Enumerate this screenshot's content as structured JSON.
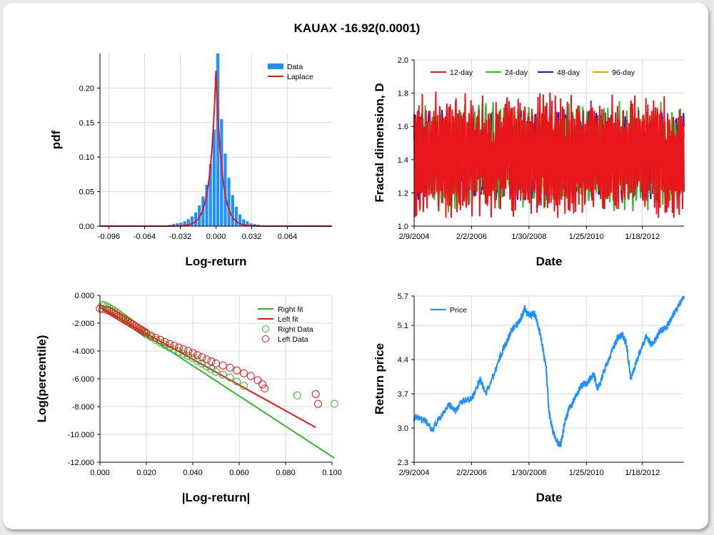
{
  "title": "KAUAX -16.92(0.0001)",
  "chart_data": [
    {
      "type": "bar",
      "xlabel": "Log-return",
      "ylabel": "pdf",
      "xlim": [
        -0.104,
        0.104
      ],
      "ylim": [
        0,
        0.25
      ],
      "x_ticks": [
        "-0.096",
        "-0.064",
        "-0.032",
        "0.000",
        "0.032",
        "0.064"
      ],
      "x_tick_values": [
        -0.096,
        -0.064,
        -0.032,
        0.0,
        0.032,
        0.064
      ],
      "y_ticks": [
        "0.00",
        "0.05",
        "0.10",
        "0.15",
        "0.20"
      ],
      "y_tick_values": [
        0,
        0.05,
        0.1,
        0.15,
        0.2
      ],
      "legend": [
        "Data",
        "Laplace"
      ],
      "legend_position": "top-right",
      "grid": true,
      "colors": {
        "data": "#1e90ff",
        "laplace": "#e8161b"
      },
      "bin_width": 0.0033,
      "bins_x": [
        -0.0479,
        -0.0446,
        -0.0413,
        -0.038,
        -0.0347,
        -0.0314,
        -0.0281,
        -0.0248,
        -0.0215,
        -0.0182,
        -0.0149,
        -0.0116,
        -0.0083,
        -0.005,
        -0.0017,
        0.0017,
        0.005,
        0.0083,
        0.0116,
        0.0149,
        0.0182,
        0.0215,
        0.0248,
        0.0281,
        0.0314,
        0.0347,
        0.038,
        0.0413
      ],
      "bins_y": [
        0.001,
        0.001,
        0.002,
        0.003,
        0.004,
        0.005,
        0.007,
        0.01,
        0.014,
        0.02,
        0.03,
        0.043,
        0.06,
        0.09,
        0.14,
        0.25,
        0.155,
        0.105,
        0.07,
        0.045,
        0.028,
        0.017,
        0.01,
        0.007,
        0.004,
        0.003,
        0.002,
        0.001
      ],
      "laplace": {
        "peak": 0.225,
        "scale": 0.0052
      }
    },
    {
      "type": "line",
      "xlabel": "Date",
      "ylabel": "Fractal dimension, D",
      "ylim": [
        1.0,
        2.0
      ],
      "x_ticks": [
        "2/9/2004",
        "2/2/2006",
        "1/30/2008",
        "1/25/2010",
        "1/18/2012"
      ],
      "y_ticks": [
        "1.0",
        "1.2",
        "1.4",
        "1.6",
        "1.8",
        "2.0"
      ],
      "y_tick_values": [
        1.0,
        1.2,
        1.4,
        1.6,
        1.8,
        2.0
      ],
      "legend_position": "top",
      "grid": true,
      "x_range_years": [
        2004.1,
        2013.5
      ],
      "tick_years": [
        2004.1,
        2006.1,
        2008.1,
        2010.1,
        2012.05
      ],
      "series": [
        {
          "name": "12-day",
          "color": "#e8161b",
          "period": 12,
          "amplitude": 0.3
        },
        {
          "name": "24-day",
          "color": "#2db82d",
          "period": 24,
          "amplitude": 0.26
        },
        {
          "name": "48-day",
          "color": "#1a1acc",
          "period": 48,
          "amplitude": 0.22
        },
        {
          "name": "96-day",
          "color": "#ff9c00",
          "period": 96,
          "amplitude": 0.16
        }
      ]
    },
    {
      "type": "scatter",
      "xlabel": "|Log-return|",
      "ylabel": "Log(percentile)",
      "xlim": [
        0.0,
        0.1
      ],
      "ylim": [
        -12,
        0
      ],
      "x_ticks": [
        "0.000",
        "0.020",
        "0.040",
        "0.060",
        "0.080",
        "0.100"
      ],
      "x_tick_values": [
        0,
        0.02,
        0.04,
        0.06,
        0.08,
        0.1
      ],
      "y_ticks": [
        "0.000",
        "-2.000",
        "-4.000",
        "-6.000",
        "-8.000",
        "-10.000",
        "-12.000"
      ],
      "y_tick_values": [
        0,
        -2,
        -4,
        -6,
        -8,
        -10,
        -12
      ],
      "legend": [
        "Right fit",
        "Left fit",
        "Right Data",
        "Left Data"
      ],
      "legend_position": "top-right",
      "grid": true,
      "colors": {
        "right": "#2db82d",
        "left": "#e8161b"
      },
      "right_fit": [
        [
          0.0,
          -0.7
        ],
        [
          0.101,
          -11.7
        ]
      ],
      "left_fit": [
        [
          0.0,
          -0.9
        ],
        [
          0.093,
          -9.5
        ]
      ],
      "right_data": [
        [
          0.001,
          -0.69
        ],
        [
          0.002,
          -0.72
        ],
        [
          0.003,
          -0.8
        ],
        [
          0.004,
          -0.9
        ],
        [
          0.005,
          -1.0
        ],
        [
          0.006,
          -1.1
        ],
        [
          0.007,
          -1.2
        ],
        [
          0.008,
          -1.32
        ],
        [
          0.009,
          -1.45
        ],
        [
          0.01,
          -1.58
        ],
        [
          0.011,
          -1.7
        ],
        [
          0.012,
          -1.82
        ],
        [
          0.013,
          -1.95
        ],
        [
          0.014,
          -2.07
        ],
        [
          0.015,
          -2.2
        ],
        [
          0.016,
          -2.32
        ],
        [
          0.017,
          -2.44
        ],
        [
          0.018,
          -2.56
        ],
        [
          0.019,
          -2.68
        ],
        [
          0.02,
          -2.8
        ],
        [
          0.022,
          -3.0
        ],
        [
          0.024,
          -3.2
        ],
        [
          0.026,
          -3.4
        ],
        [
          0.028,
          -3.58
        ],
        [
          0.03,
          -3.75
        ],
        [
          0.032,
          -3.9
        ],
        [
          0.034,
          -4.05
        ],
        [
          0.036,
          -4.2
        ],
        [
          0.038,
          -4.35
        ],
        [
          0.04,
          -4.5
        ],
        [
          0.042,
          -4.7
        ],
        [
          0.044,
          -4.9
        ],
        [
          0.046,
          -5.1
        ],
        [
          0.048,
          -5.3
        ],
        [
          0.05,
          -5.5
        ],
        [
          0.053,
          -5.7
        ],
        [
          0.056,
          -5.9
        ],
        [
          0.059,
          -6.2
        ],
        [
          0.062,
          -6.5
        ],
        [
          0.085,
          -7.2
        ],
        [
          0.101,
          -7.8
        ]
      ],
      "left_data": [
        [
          0.0,
          -0.95
        ],
        [
          0.001,
          -0.98
        ],
        [
          0.003,
          -1.05
        ],
        [
          0.004,
          -1.1
        ],
        [
          0.005,
          -1.2
        ],
        [
          0.006,
          -1.3
        ],
        [
          0.007,
          -1.4
        ],
        [
          0.008,
          -1.5
        ],
        [
          0.009,
          -1.6
        ],
        [
          0.01,
          -1.7
        ],
        [
          0.011,
          -1.8
        ],
        [
          0.012,
          -1.9
        ],
        [
          0.013,
          -2.0
        ],
        [
          0.014,
          -2.1
        ],
        [
          0.015,
          -2.2
        ],
        [
          0.016,
          -2.3
        ],
        [
          0.017,
          -2.4
        ],
        [
          0.018,
          -2.5
        ],
        [
          0.019,
          -2.6
        ],
        [
          0.02,
          -2.7
        ],
        [
          0.022,
          -2.9
        ],
        [
          0.024,
          -3.05
        ],
        [
          0.026,
          -3.2
        ],
        [
          0.028,
          -3.35
        ],
        [
          0.03,
          -3.5
        ],
        [
          0.032,
          -3.62
        ],
        [
          0.034,
          -3.75
        ],
        [
          0.036,
          -3.88
        ],
        [
          0.038,
          -4.0
        ],
        [
          0.04,
          -4.15
        ],
        [
          0.042,
          -4.3
        ],
        [
          0.044,
          -4.45
        ],
        [
          0.046,
          -4.6
        ],
        [
          0.048,
          -4.75
        ],
        [
          0.05,
          -4.9
        ],
        [
          0.053,
          -5.05
        ],
        [
          0.056,
          -5.2
        ],
        [
          0.059,
          -5.4
        ],
        [
          0.062,
          -5.6
        ],
        [
          0.065,
          -5.8
        ],
        [
          0.068,
          -6.1
        ],
        [
          0.07,
          -6.4
        ],
        [
          0.071,
          -6.7
        ],
        [
          0.093,
          -7.1
        ],
        [
          0.094,
          -7.8
        ]
      ]
    },
    {
      "type": "line",
      "xlabel": "Date",
      "ylabel": "Return price",
      "ylim": [
        2.3,
        5.7
      ],
      "x_ticks": [
        "2/9/2004",
        "2/2/2006",
        "1/30/2008",
        "1/25/2010",
        "1/18/2012"
      ],
      "y_ticks": [
        "2.3",
        "3.0",
        "3.7",
        "4.4",
        "5.1",
        "5.7"
      ],
      "y_tick_values": [
        2.3,
        3.0,
        3.7,
        4.4,
        5.1,
        5.7
      ],
      "legend": [
        "Price"
      ],
      "legend_position": "top-left",
      "grid": true,
      "color": "#1e90ff",
      "x_range_years": [
        2004.1,
        2013.5
      ],
      "tick_years": [
        2004.1,
        2006.1,
        2008.1,
        2010.1,
        2012.05
      ],
      "price_path": [
        [
          2004.1,
          3.2
        ],
        [
          2004.5,
          3.15
        ],
        [
          2004.7,
          2.95
        ],
        [
          2005.0,
          3.2
        ],
        [
          2005.3,
          3.5
        ],
        [
          2005.5,
          3.35
        ],
        [
          2005.8,
          3.55
        ],
        [
          2006.1,
          3.6
        ],
        [
          2006.4,
          4.0
        ],
        [
          2006.6,
          3.7
        ],
        [
          2006.9,
          4.15
        ],
        [
          2007.2,
          4.6
        ],
        [
          2007.5,
          5.0
        ],
        [
          2007.8,
          5.2
        ],
        [
          2007.95,
          5.45
        ],
        [
          2008.1,
          5.3
        ],
        [
          2008.3,
          5.35
        ],
        [
          2008.5,
          4.9
        ],
        [
          2008.7,
          4.2
        ],
        [
          2008.8,
          3.3
        ],
        [
          2008.95,
          2.9
        ],
        [
          2009.1,
          2.7
        ],
        [
          2009.2,
          2.65
        ],
        [
          2009.35,
          3.1
        ],
        [
          2009.5,
          3.4
        ],
        [
          2009.7,
          3.6
        ],
        [
          2009.9,
          3.85
        ],
        [
          2010.1,
          3.9
        ],
        [
          2010.35,
          4.1
        ],
        [
          2010.5,
          3.8
        ],
        [
          2010.75,
          4.2
        ],
        [
          2011.0,
          4.6
        ],
        [
          2011.2,
          4.85
        ],
        [
          2011.35,
          4.9
        ],
        [
          2011.5,
          4.7
        ],
        [
          2011.65,
          4.0
        ],
        [
          2011.8,
          4.3
        ],
        [
          2012.0,
          4.6
        ],
        [
          2012.2,
          4.9
        ],
        [
          2012.35,
          4.7
        ],
        [
          2012.5,
          4.8
        ],
        [
          2012.7,
          5.0
        ],
        [
          2012.9,
          5.05
        ],
        [
          2013.1,
          5.3
        ],
        [
          2013.3,
          5.5
        ],
        [
          2013.5,
          5.7
        ]
      ]
    }
  ]
}
